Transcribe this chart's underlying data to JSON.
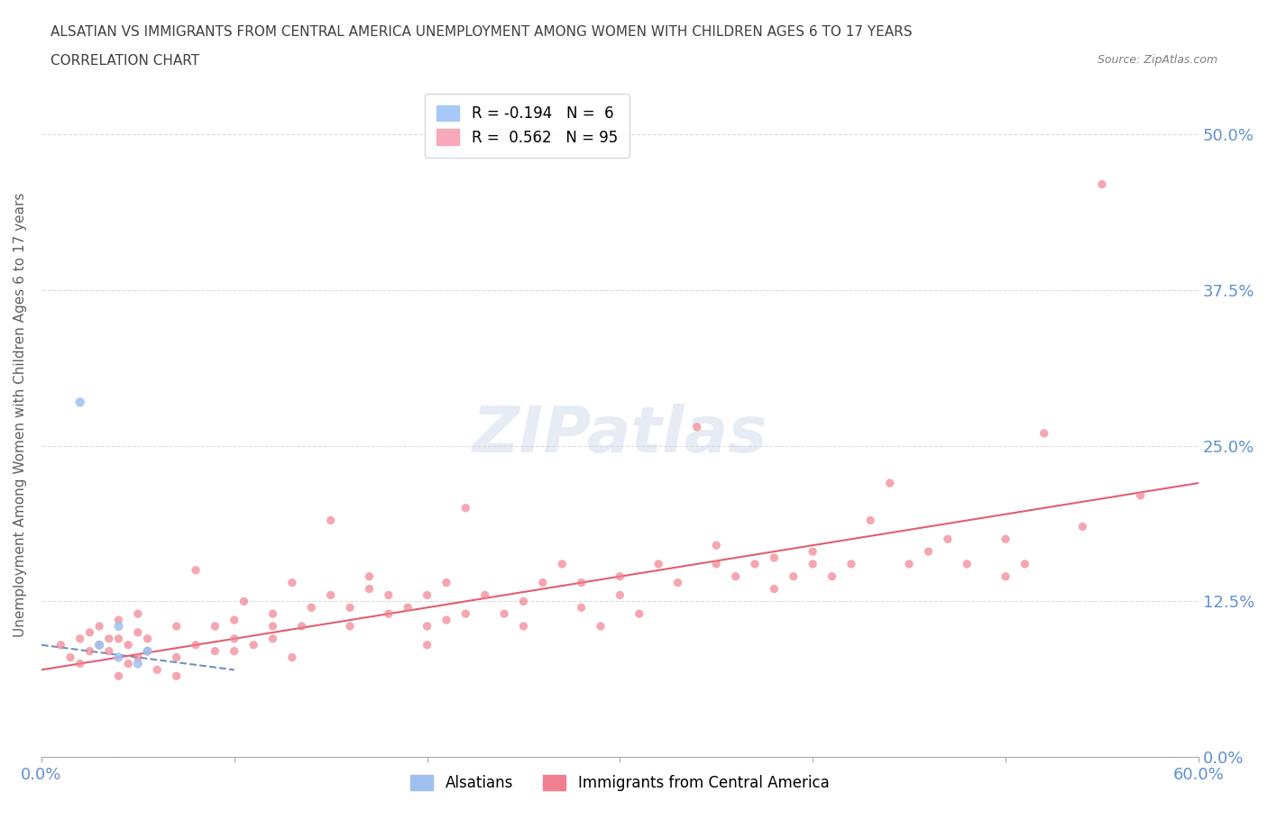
{
  "title_line1": "ALSATIAN VS IMMIGRANTS FROM CENTRAL AMERICA UNEMPLOYMENT AMONG WOMEN WITH CHILDREN AGES 6 TO 17 YEARS",
  "title_line2": "CORRELATION CHART",
  "source_text": "Source: ZipAtlas.com",
  "ylabel": "Unemployment Among Women with Children Ages 6 to 17 years",
  "x_min": 0.0,
  "x_max": 0.6,
  "y_min": 0.0,
  "y_max": 0.55,
  "ytick_labels": [
    "0.0%",
    "12.5%",
    "25.0%",
    "37.5%",
    "50.0%"
  ],
  "ytick_values": [
    0.0,
    0.125,
    0.25,
    0.375,
    0.5
  ],
  "xtick_values": [
    0.0,
    0.1,
    0.2,
    0.3,
    0.4,
    0.5,
    0.6
  ],
  "watermark": "ZIPatlas",
  "legend_entries": [
    {
      "label": "R = -0.194   N =  6",
      "color": "#a8c8f8"
    },
    {
      "label": "R =  0.562   N = 95",
      "color": "#f8a8b8"
    }
  ],
  "alsatian_color": "#a0c0f0",
  "immigrant_color": "#f08090",
  "alsatian_points": [
    [
      0.02,
      0.285
    ],
    [
      0.03,
      0.09
    ],
    [
      0.04,
      0.08
    ],
    [
      0.04,
      0.105
    ],
    [
      0.05,
      0.075
    ],
    [
      0.055,
      0.085
    ]
  ],
  "immigrant_points": [
    [
      0.01,
      0.09
    ],
    [
      0.015,
      0.08
    ],
    [
      0.02,
      0.075
    ],
    [
      0.02,
      0.095
    ],
    [
      0.025,
      0.085
    ],
    [
      0.025,
      0.1
    ],
    [
      0.03,
      0.09
    ],
    [
      0.03,
      0.105
    ],
    [
      0.035,
      0.095
    ],
    [
      0.035,
      0.085
    ],
    [
      0.04,
      0.065
    ],
    [
      0.04,
      0.095
    ],
    [
      0.04,
      0.11
    ],
    [
      0.045,
      0.075
    ],
    [
      0.045,
      0.09
    ],
    [
      0.05,
      0.08
    ],
    [
      0.05,
      0.1
    ],
    [
      0.05,
      0.115
    ],
    [
      0.055,
      0.085
    ],
    [
      0.055,
      0.095
    ],
    [
      0.06,
      0.07
    ],
    [
      0.07,
      0.065
    ],
    [
      0.07,
      0.08
    ],
    [
      0.07,
      0.105
    ],
    [
      0.08,
      0.09
    ],
    [
      0.08,
      0.15
    ],
    [
      0.09,
      0.085
    ],
    [
      0.09,
      0.105
    ],
    [
      0.1,
      0.085
    ],
    [
      0.1,
      0.095
    ],
    [
      0.1,
      0.11
    ],
    [
      0.105,
      0.125
    ],
    [
      0.11,
      0.09
    ],
    [
      0.12,
      0.095
    ],
    [
      0.12,
      0.105
    ],
    [
      0.12,
      0.115
    ],
    [
      0.13,
      0.08
    ],
    [
      0.13,
      0.14
    ],
    [
      0.135,
      0.105
    ],
    [
      0.14,
      0.12
    ],
    [
      0.15,
      0.13
    ],
    [
      0.15,
      0.19
    ],
    [
      0.16,
      0.105
    ],
    [
      0.16,
      0.12
    ],
    [
      0.17,
      0.135
    ],
    [
      0.17,
      0.145
    ],
    [
      0.18,
      0.115
    ],
    [
      0.18,
      0.13
    ],
    [
      0.19,
      0.12
    ],
    [
      0.2,
      0.09
    ],
    [
      0.2,
      0.105
    ],
    [
      0.2,
      0.13
    ],
    [
      0.21,
      0.11
    ],
    [
      0.21,
      0.14
    ],
    [
      0.22,
      0.115
    ],
    [
      0.22,
      0.2
    ],
    [
      0.23,
      0.13
    ],
    [
      0.24,
      0.115
    ],
    [
      0.25,
      0.105
    ],
    [
      0.25,
      0.125
    ],
    [
      0.26,
      0.14
    ],
    [
      0.27,
      0.155
    ],
    [
      0.28,
      0.12
    ],
    [
      0.28,
      0.14
    ],
    [
      0.29,
      0.105
    ],
    [
      0.3,
      0.13
    ],
    [
      0.3,
      0.145
    ],
    [
      0.31,
      0.115
    ],
    [
      0.32,
      0.155
    ],
    [
      0.33,
      0.14
    ],
    [
      0.34,
      0.265
    ],
    [
      0.35,
      0.155
    ],
    [
      0.35,
      0.17
    ],
    [
      0.36,
      0.145
    ],
    [
      0.37,
      0.155
    ],
    [
      0.38,
      0.135
    ],
    [
      0.38,
      0.16
    ],
    [
      0.39,
      0.145
    ],
    [
      0.4,
      0.155
    ],
    [
      0.4,
      0.165
    ],
    [
      0.41,
      0.145
    ],
    [
      0.42,
      0.155
    ],
    [
      0.43,
      0.19
    ],
    [
      0.44,
      0.22
    ],
    [
      0.45,
      0.155
    ],
    [
      0.46,
      0.165
    ],
    [
      0.47,
      0.175
    ],
    [
      0.48,
      0.155
    ],
    [
      0.5,
      0.145
    ],
    [
      0.5,
      0.175
    ],
    [
      0.51,
      0.155
    ],
    [
      0.52,
      0.26
    ],
    [
      0.54,
      0.185
    ],
    [
      0.55,
      0.46
    ],
    [
      0.57,
      0.21
    ]
  ],
  "alsatian_trendline": {
    "x": [
      0.0,
      0.1
    ],
    "y": [
      0.09,
      0.07
    ]
  },
  "immigrant_trendline": {
    "x": [
      0.0,
      0.6
    ],
    "y": [
      0.07,
      0.22
    ]
  },
  "background_color": "#ffffff",
  "grid_color": "#cccccc",
  "title_color": "#404040",
  "axis_label_color": "#606060",
  "tick_label_color": "#6090d0",
  "watermark_color": "#d0d8e8",
  "watermark_alpha": 0.5
}
